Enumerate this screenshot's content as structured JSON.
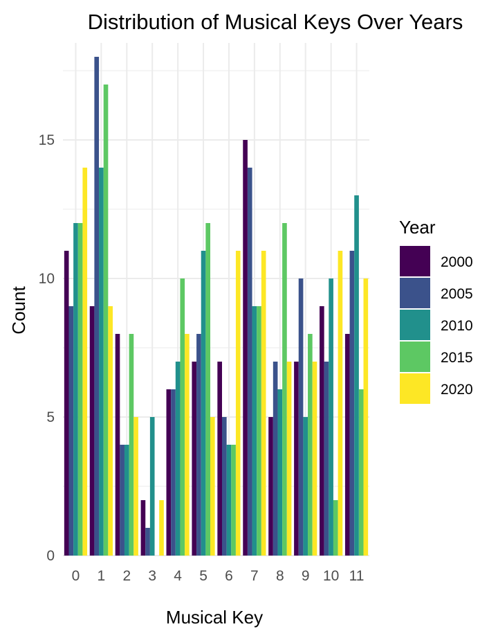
{
  "chart_data": {
    "type": "bar",
    "title": "Distribution of Musical Keys Over Years",
    "xlabel": "Musical Key",
    "ylabel": "Count",
    "categories": [
      "0",
      "1",
      "2",
      "3",
      "4",
      "5",
      "6",
      "7",
      "8",
      "9",
      "10",
      "11"
    ],
    "ylim": [
      0,
      18.5
    ],
    "yticks": [
      0,
      5,
      10,
      15
    ],
    "grid": true,
    "legend": {
      "title": "Year",
      "placement": "right"
    },
    "series": [
      {
        "name": "2000",
        "color": "#440154",
        "values": [
          11,
          9,
          8,
          2,
          6,
          7,
          7,
          15,
          5,
          7,
          9,
          8
        ]
      },
      {
        "name": "2005",
        "color": "#3B528B",
        "values": [
          9,
          18,
          4,
          1,
          6,
          8,
          5,
          14,
          7,
          10,
          7,
          11
        ]
      },
      {
        "name": "2010",
        "color": "#21908C",
        "values": [
          12,
          14,
          4,
          5,
          7,
          11,
          4,
          9,
          6,
          5,
          10,
          13
        ]
      },
      {
        "name": "2015",
        "color": "#5DC863",
        "values": [
          12,
          17,
          8,
          0,
          10,
          12,
          4,
          9,
          12,
          8,
          2,
          6
        ]
      },
      {
        "name": "2020",
        "color": "#FDE725",
        "values": [
          14,
          9,
          5,
          2,
          8,
          5,
          11,
          11,
          7,
          7,
          11,
          10
        ]
      }
    ]
  }
}
